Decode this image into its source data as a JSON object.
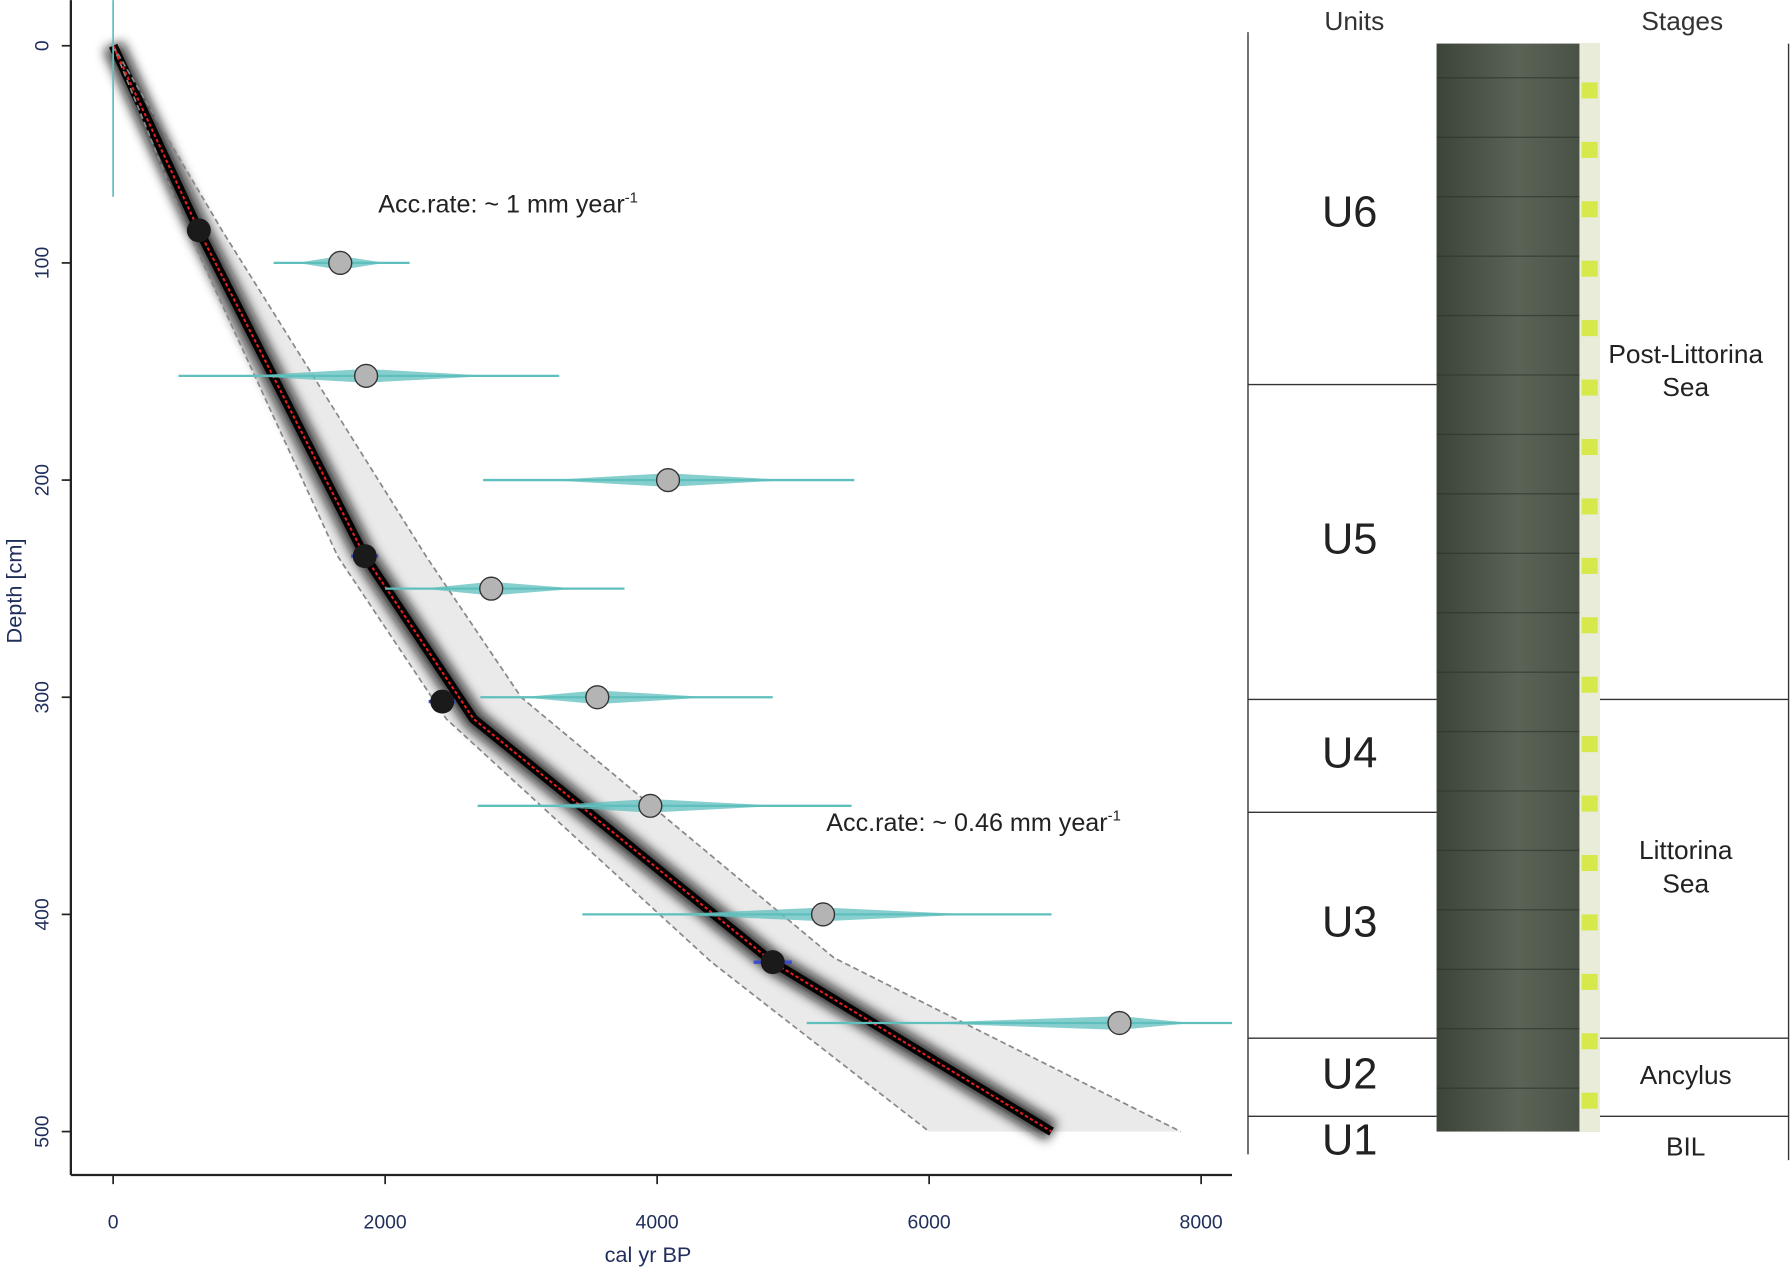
{
  "chart_data": {
    "type": "age-depth",
    "x_label": "cal yr BP",
    "y_label": "Depth [cm]",
    "xlim": [
      -311,
      8227
    ],
    "ylim": [
      -21,
      520
    ],
    "y_inverted": true,
    "xticks": [
      0,
      2000,
      4000,
      6000,
      8000
    ],
    "yticks": [
      0,
      100,
      200,
      300,
      400,
      500
    ],
    "model": {
      "color": "#e02020",
      "x": [
        0,
        630,
        1850,
        2650,
        4850,
        6900
      ],
      "y": [
        0,
        85,
        235,
        310,
        422,
        500
      ]
    },
    "bound_min": {
      "color": "#888888",
      "x": [
        0,
        550,
        1650,
        2450,
        4400,
        6000
      ],
      "y": [
        0,
        85,
        235,
        310,
        422,
        500
      ]
    },
    "bound_max": {
      "color": "#888888",
      "x": [
        0,
        800,
        2300,
        3000,
        5300,
        7850
      ],
      "y": [
        0,
        85,
        235,
        300,
        420,
        500
      ]
    },
    "dates": {
      "color": "#1a1a1a",
      "error_color": "#3b4bd0",
      "x": [
        630,
        1850,
        2420,
        4850
      ],
      "y": [
        85,
        235,
        302,
        422
      ],
      "error": [
        60,
        100,
        100,
        140
      ]
    },
    "other_dates": {
      "color": "#b4b4b4",
      "range_color": "#5fbfbd",
      "x": [
        1670,
        1860,
        4080,
        2780,
        3560,
        3950,
        5220,
        7400
      ],
      "y": [
        100,
        152,
        200,
        250,
        300,
        350,
        400,
        450
      ],
      "range_low": [
        1180,
        480,
        2720,
        2000,
        2700,
        2680,
        3450,
        5100
      ],
      "range_high": [
        2180,
        3280,
        5450,
        3760,
        4850,
        5430,
        6900,
        8227
      ]
    },
    "annotations": [
      {
        "text": "Acc.rate: ~ 1  mm year",
        "sup": "-1"
      },
      {
        "text": "Acc.rate: ~ 0.46 mm year",
        "sup": "-1"
      }
    ]
  },
  "core_log": {
    "headers": {
      "units": "Units",
      "stages": "Stages"
    },
    "units": [
      {
        "label": "U6",
        "top": 0,
        "bottom": 156
      },
      {
        "label": "U5",
        "top": 156,
        "bottom": 301
      },
      {
        "label": "U4",
        "top": 301,
        "bottom": 353
      },
      {
        "label": "U3",
        "top": 353,
        "bottom": 457
      },
      {
        "label": "U2",
        "top": 457,
        "bottom": 493
      },
      {
        "label": "U1",
        "top": 493
      }
    ],
    "stages": [
      {
        "lines": [
          "Post-Littorina",
          "Sea"
        ],
        "top": 0,
        "bottom": 301
      },
      {
        "lines": [
          "Littorina",
          "Sea"
        ],
        "top": 301,
        "bottom": 457
      },
      {
        "lines": [
          "Ancylus"
        ],
        "top": 457,
        "bottom": 493
      },
      {
        "lines": [
          "BIL"
        ],
        "top": 493
      }
    ]
  }
}
